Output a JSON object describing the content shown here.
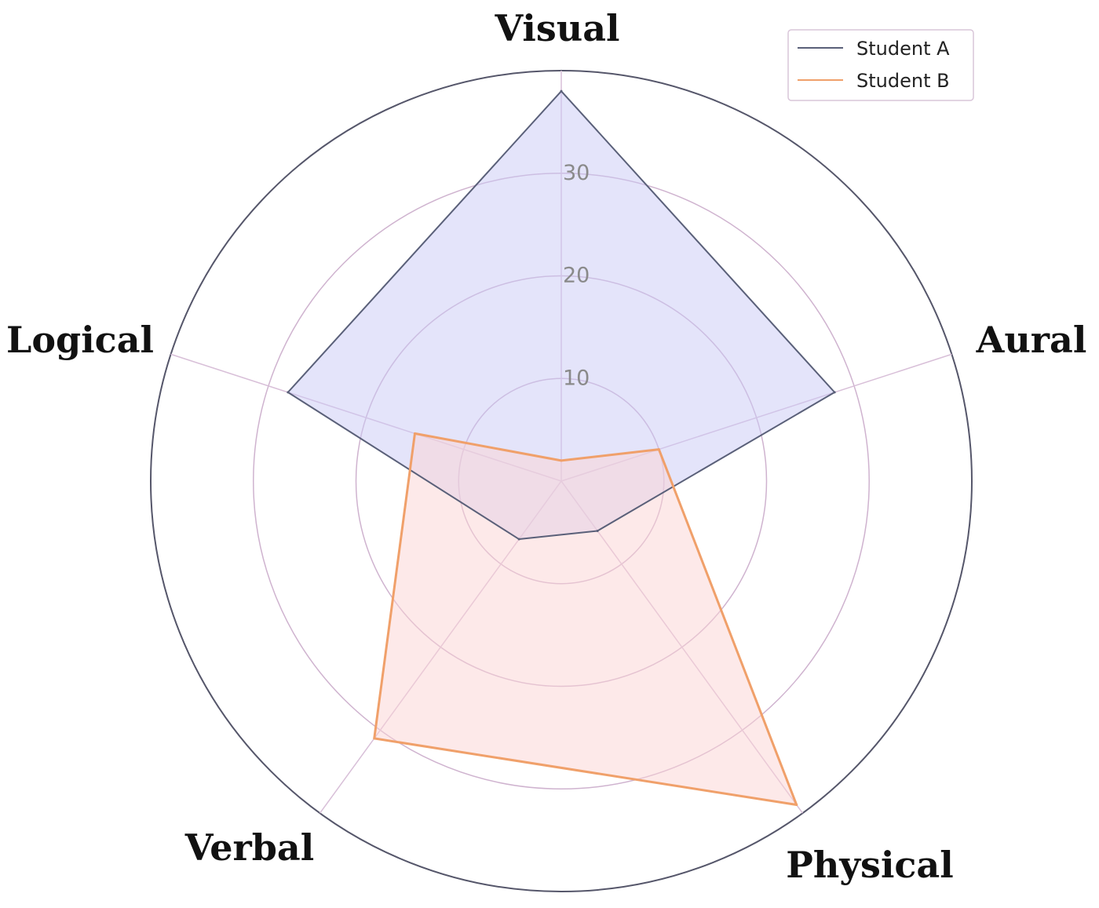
{
  "chart_data": {
    "type": "radar",
    "axes": [
      "Visual",
      "Aural",
      "Physical",
      "Verbal",
      "Logical"
    ],
    "rlim": [
      0,
      40
    ],
    "rticks": [
      10,
      20,
      30
    ],
    "grid": true,
    "legend_position": "top-right",
    "series": [
      {
        "name": "Student A",
        "values": [
          38,
          28,
          6,
          7,
          28
        ],
        "color": "#5a6079",
        "fill": "#c9c9f6"
      },
      {
        "name": "Student B",
        "values": [
          2,
          10,
          39,
          31,
          15
        ],
        "color": "#f0a06a",
        "fill": "#fbd4d4"
      }
    ]
  },
  "colors": {
    "grid_ring": "#cfb3cf",
    "outer_ring": "#55566a",
    "spoke": "#d8bfd8"
  }
}
